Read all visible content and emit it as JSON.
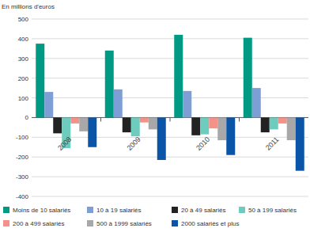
{
  "chart_data": {
    "type": "bar",
    "y_label": "En millions d'euros",
    "categories": [
      "2008",
      "2009",
      "2010",
      "2011"
    ],
    "series": [
      {
        "name": "Moins de 10 salariés",
        "color": "#009a84",
        "values": [
          375,
          340,
          420,
          405
        ]
      },
      {
        "name": "10 à 19 salariés",
        "color": "#7e9fd6",
        "values": [
          130,
          143,
          135,
          150
        ]
      },
      {
        "name": "20 à 49 salariés",
        "color": "#222222",
        "values": [
          -80,
          -75,
          -90,
          -75
        ]
      },
      {
        "name": "50 à 199 salariés",
        "color": "#6dccbd",
        "values": [
          -155,
          -95,
          -85,
          -60
        ]
      },
      {
        "name": "200 à 499 salariés",
        "color": "#f4928a",
        "values": [
          -30,
          -25,
          -55,
          -30
        ]
      },
      {
        "name": "500 à 1999 salariés",
        "color": "#a8a8a8",
        "values": [
          -70,
          -60,
          -115,
          -115
        ]
      },
      {
        "name": "2000 salariés et plus",
        "color": "#0b55a8",
        "values": [
          -150,
          -215,
          -190,
          -270
        ]
      }
    ],
    "ylim": [
      -400,
      500
    ],
    "yticks": [
      -400,
      -300,
      -200,
      -100,
      0,
      100,
      200,
      300,
      400,
      500
    ],
    "grid": true,
    "legend": "bottom"
  }
}
